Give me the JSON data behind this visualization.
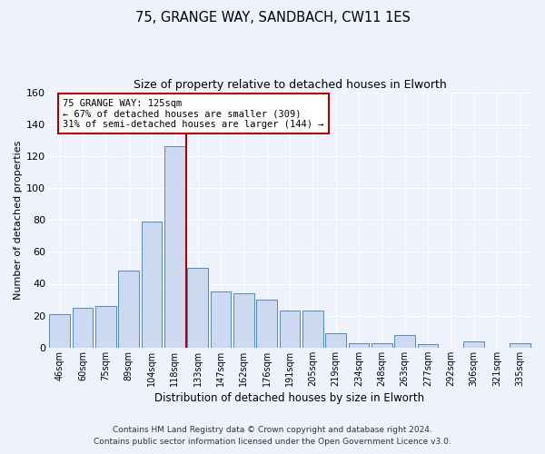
{
  "title1": "75, GRANGE WAY, SANDBACH, CW11 1ES",
  "title2": "Size of property relative to detached houses in Elworth",
  "xlabel": "Distribution of detached houses by size in Elworth",
  "ylabel": "Number of detached properties",
  "bar_labels": [
    "46sqm",
    "60sqm",
    "75sqm",
    "89sqm",
    "104sqm",
    "118sqm",
    "133sqm",
    "147sqm",
    "162sqm",
    "176sqm",
    "191sqm",
    "205sqm",
    "219sqm",
    "234sqm",
    "248sqm",
    "263sqm",
    "277sqm",
    "292sqm",
    "306sqm",
    "321sqm",
    "335sqm"
  ],
  "bar_heights": [
    21,
    25,
    26,
    48,
    79,
    126,
    50,
    35,
    34,
    30,
    23,
    23,
    9,
    3,
    3,
    8,
    2,
    0,
    4,
    0,
    3
  ],
  "bar_color": "#ccd9f0",
  "bar_edge_color": "#5588bb",
  "vline_x": 5.5,
  "vline_color": "#aa0000",
  "annotation_text_line1": "75 GRANGE WAY: 125sqm",
  "annotation_text_line2": "← 67% of detached houses are smaller (309)",
  "annotation_text_line3": "31% of semi-detached houses are larger (144) →",
  "annotation_box_edgecolor": "#aa0000",
  "annotation_box_facecolor": "white",
  "ylim": [
    0,
    160
  ],
  "yticks": [
    0,
    20,
    40,
    60,
    80,
    100,
    120,
    140,
    160
  ],
  "bg_color": "#eef2fc",
  "grid_color": "white",
  "footer1": "Contains HM Land Registry data © Crown copyright and database right 2024.",
  "footer2": "Contains public sector information licensed under the Open Government Licence v3.0."
}
